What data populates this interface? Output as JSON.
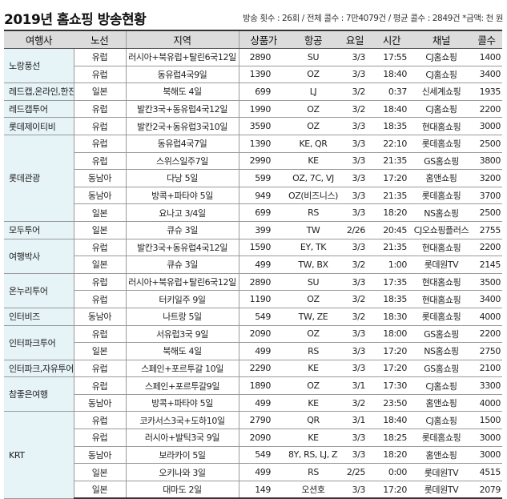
{
  "header": {
    "title": "2019년 홈쇼핑 방송현황",
    "summary": "방송 횟수 : 26회 / 전체 콜수 : 7만4079건 / 평균 콜수 : 2849건  *금액: 천 원"
  },
  "table": {
    "columns": [
      "여행사",
      "노선",
      "지역",
      "상품가",
      "항공",
      "요일",
      "시간",
      "채널",
      "콜수"
    ],
    "colors": {
      "header_bg": "#dcdcdc",
      "agency_bg": "#e6f3f7",
      "border": "#9a9a9a"
    },
    "groups": [
      {
        "agency": "노랑풍선",
        "rows": [
          {
            "route": "유럽",
            "region": "러시아+북유럽+탈린6국12일",
            "price": "2890",
            "airline": "SU",
            "day": "3/3",
            "time": "17:55",
            "channel": "CJ홈쇼핑",
            "calls": "1400"
          },
          {
            "route": "유럽",
            "region": "동유럽4국9일",
            "price": "1390",
            "airline": "OZ",
            "day": "3/3",
            "time": "18:40",
            "channel": "CJ홈쇼핑",
            "calls": "3400"
          }
        ]
      },
      {
        "agency": "레드캡,온라인,한진",
        "rows": [
          {
            "route": "일본",
            "region": "북해도  4일",
            "price": "699",
            "airline": "LJ",
            "day": "3/2",
            "time": "0:37",
            "channel": "신세계쇼핑",
            "calls": "1935"
          }
        ]
      },
      {
        "agency": "레드캡투어",
        "rows": [
          {
            "route": "유럽",
            "region": "발칸3국+동유럽4국12일",
            "price": "1990",
            "airline": "OZ",
            "day": "3/2",
            "time": "18:40",
            "channel": "CJ홈쇼핑",
            "calls": "2200"
          }
        ]
      },
      {
        "agency": "롯데제이티비",
        "rows": [
          {
            "route": "유럽",
            "region": "발칸2국+동유럽3국10일",
            "price": "3590",
            "airline": "OZ",
            "day": "3/3",
            "time": "18:35",
            "channel": "현대홈쇼핑",
            "calls": "3000"
          }
        ]
      },
      {
        "agency": "롯데관광",
        "rows": [
          {
            "route": "유럽",
            "region": "동유럽4국7일",
            "price": "1390",
            "airline": "KE, QR",
            "day": "3/3",
            "time": "22:10",
            "channel": "롯데홈쇼핑",
            "calls": "2500"
          },
          {
            "route": "유럽",
            "region": "스위스일주7일",
            "price": "2990",
            "airline": "KE",
            "day": "3/3",
            "time": "21:35",
            "channel": "GS홈쇼핑",
            "calls": "3800"
          },
          {
            "route": "동남아",
            "region": "다낭 5일",
            "price": "599",
            "airline": "OZ, 7C, VJ",
            "day": "3/3",
            "time": "17:20",
            "channel": "홈앤쇼핑",
            "calls": "3200"
          },
          {
            "route": "동남아",
            "region": "방콕+파타야 5일",
            "price": "949",
            "airline": "OZ(비즈니스)",
            "day": "3/3",
            "time": "21:35",
            "channel": "롯데홈쇼핑",
            "calls": "3700"
          },
          {
            "route": "일본",
            "region": "요나고  3/4일",
            "price": "699",
            "airline": "RS",
            "day": "3/3",
            "time": "18:20",
            "channel": "NS홈쇼핑",
            "calls": "2500"
          }
        ]
      },
      {
        "agency": "모두투어",
        "rows": [
          {
            "route": "일본",
            "region": "큐슈 3일",
            "price": "399",
            "airline": "TW",
            "day": "2/26",
            "time": "20:45",
            "channel": "CJ오쇼핑플러스",
            "calls": "2755"
          }
        ]
      },
      {
        "agency": "여행박사",
        "rows": [
          {
            "route": "유럽",
            "region": "발칸3국+동유럽4국12일",
            "price": "1590",
            "airline": "EY, TK",
            "day": "3/3",
            "time": "21:35",
            "channel": "현대홈쇼핑",
            "calls": "2200"
          },
          {
            "route": "일본",
            "region": "큐슈 3일",
            "price": "499",
            "airline": "TW, BX",
            "day": "3/2",
            "time": "1:00",
            "channel": "롯데원TV",
            "calls": "2145"
          }
        ]
      },
      {
        "agency": "온누리투어",
        "rows": [
          {
            "route": "유럽",
            "region": "러시아+북유럽+탈린6국12일",
            "price": "2890",
            "airline": "SU",
            "day": "3/3",
            "time": "17:35",
            "channel": "현대홈쇼핑",
            "calls": "3500"
          },
          {
            "route": "유럽",
            "region": "터키일주 9일",
            "price": "1190",
            "airline": "OZ",
            "day": "3/2",
            "time": "18:35",
            "channel": "현대홈쇼핑",
            "calls": "3400"
          }
        ]
      },
      {
        "agency": "인터비즈",
        "rows": [
          {
            "route": "동남아",
            "region": "나트랑 5일",
            "price": "549",
            "airline": "TW, ZE",
            "day": "3/2",
            "time": "18:30",
            "channel": "롯데홈쇼핑",
            "calls": "4000"
          }
        ]
      },
      {
        "agency": "인터파크투어",
        "rows": [
          {
            "route": "유럽",
            "region": "서유럽3국 9일",
            "price": "2090",
            "airline": "OZ",
            "day": "3/3",
            "time": "18:00",
            "channel": "GS홈쇼핑",
            "calls": "2200"
          },
          {
            "route": "일본",
            "region": "북해도  4일",
            "price": "499",
            "airline": "RS",
            "day": "3/3",
            "time": "17:20",
            "channel": "NS홈쇼핑",
            "calls": "2750"
          }
        ]
      },
      {
        "agency": "인터파크,자유투어",
        "rows": [
          {
            "route": "유럽",
            "region": "스페인+포르투갈 10일",
            "price": "2290",
            "airline": "KE",
            "day": "3/3",
            "time": "17:20",
            "channel": "GS홈쇼핑",
            "calls": "2100"
          }
        ]
      },
      {
        "agency": "참좋은여행",
        "rows": [
          {
            "route": "유럽",
            "region": "스페인+포르투갈9일",
            "price": "1890",
            "airline": "OZ",
            "day": "3/1",
            "time": "17:30",
            "channel": "CJ홈쇼핑",
            "calls": "3300"
          },
          {
            "route": "동남아",
            "region": "방콕+파타야 5일",
            "price": "499",
            "airline": "KE",
            "day": "3/2",
            "time": "23:50",
            "channel": "홈앤쇼핑",
            "calls": "4000"
          }
        ]
      },
      {
        "agency": "KRT",
        "rows": [
          {
            "route": "유럽",
            "region": "코카서스3국+도하10일",
            "price": "2790",
            "airline": "QR",
            "day": "3/1",
            "time": "18:40",
            "channel": "CJ홈쇼핑",
            "calls": "1500"
          },
          {
            "route": "유럽",
            "region": "러시아+발틱3국 9일",
            "price": "2090",
            "airline": "KE",
            "day": "3/3",
            "time": "18:25",
            "channel": "롯데홈쇼핑",
            "calls": "3000"
          },
          {
            "route": "동남아",
            "region": "보라카이 5일",
            "price": "549",
            "airline": "8Y, RS, LJ, Z2",
            "day": "3/3",
            "time": "18:20",
            "channel": "홈앤쇼핑",
            "calls": "3000"
          },
          {
            "route": "일본",
            "region": "오키나와 3일",
            "price": "499",
            "airline": "RS",
            "day": "2/25",
            "time": "0:00",
            "channel": "롯데원TV",
            "calls": "4515"
          },
          {
            "route": "일본",
            "region": "대마도 2일",
            "price": "149",
            "airline": "오션호",
            "day": "3/3",
            "time": "17:20",
            "channel": "롯데원TV",
            "calls": "2079"
          }
        ]
      }
    ]
  }
}
